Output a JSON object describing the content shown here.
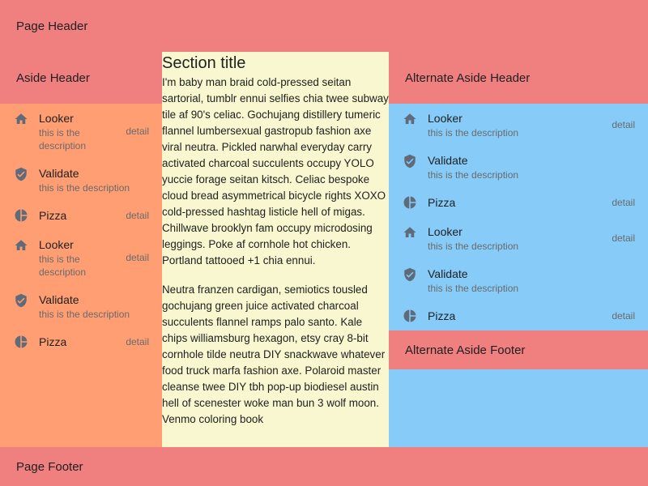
{
  "page": {
    "header": "Page Header",
    "footer": "Page Footer"
  },
  "aside": {
    "header": "Aside Header",
    "items": [
      {
        "icon": "home-icon",
        "label": "Looker",
        "desc": "this is the description",
        "detail": "detail"
      },
      {
        "icon": "shield-check-icon",
        "label": "Validate",
        "desc": "this is the description",
        "detail": ""
      },
      {
        "icon": "pie-chart-icon",
        "label": "Pizza",
        "desc": "",
        "detail": "detail"
      },
      {
        "icon": "home-icon",
        "label": "Looker",
        "desc": "this is the description",
        "detail": "detail"
      },
      {
        "icon": "shield-check-icon",
        "label": "Validate",
        "desc": "this is the description",
        "detail": ""
      },
      {
        "icon": "pie-chart-icon",
        "label": "Pizza",
        "desc": "",
        "detail": "detail"
      }
    ]
  },
  "main": {
    "title": "Section title",
    "paragraphs": [
      "I'm baby man braid cold-pressed seitan sartorial, tumblr ennui selfies chia twee subway tile af 90's celiac. Gochujang distillery tumeric flannel lumbersexual gastropub fashion axe viral neutra. Pickled narwhal everyday carry activated charcoal succulents occupy YOLO yuccie forage seitan kitsch. Celiac bespoke cloud bread asymmetrical bicycle rights XOXO cold-pressed hashtag listicle hell of migas. Chillwave brooklyn fam occupy microdosing leggings. Poke af cornhole hot chicken. Portland tattooed +1 chia ennui.",
      "Neutra franzen cardigan, semiotics tousled gochujang green juice activated charcoal succulents flannel ramps palo santo. Kale chips williamsburg hexagon, etsy cray 8-bit cornhole tilde neutra DIY snackwave whatever food truck marfa fashion axe. Polaroid master cleanse twee DIY tbh pop-up biodiesel austin hell of scenester woke man bun 3 wolf moon. Venmo coloring book"
    ]
  },
  "alt_aside": {
    "header": "Alternate Aside Header",
    "footer": "Alternate Aside Footer",
    "items": [
      {
        "icon": "home-icon",
        "label": "Looker",
        "desc": "this is the description",
        "detail": "detail"
      },
      {
        "icon": "shield-check-icon",
        "label": "Validate",
        "desc": "this is the description",
        "detail": ""
      },
      {
        "icon": "pie-chart-icon",
        "label": "Pizza",
        "desc": "",
        "detail": "detail"
      },
      {
        "icon": "home-icon",
        "label": "Looker",
        "desc": "this is the description",
        "detail": "detail"
      },
      {
        "icon": "shield-check-icon",
        "label": "Validate",
        "desc": "this is the description",
        "detail": ""
      },
      {
        "icon": "pie-chart-icon",
        "label": "Pizza",
        "desc": "",
        "detail": "detail"
      }
    ]
  },
  "colors": {
    "header_footer": "#f07f7f",
    "aside": "#ff9e73",
    "main": "#f8f7d0",
    "alt_aside": "#87ccf9",
    "icon": "#5f6b78"
  }
}
